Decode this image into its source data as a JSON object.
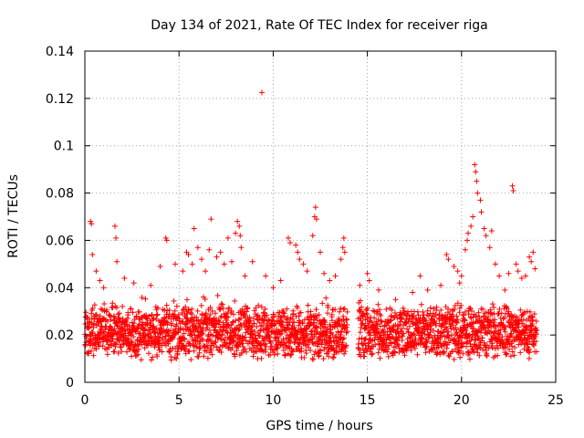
{
  "chart_data": {
    "type": "scatter",
    "title": "Day 134 of 2021, Rate Of TEC Index for receiver riga",
    "xlabel": "GPS time / hours",
    "ylabel": "ROTI / TECUs",
    "xlim": [
      0,
      25
    ],
    "ylim": [
      0,
      0.14
    ],
    "xticks": [
      0,
      5,
      10,
      15,
      20,
      25
    ],
    "xtick_labels": [
      "0",
      "5",
      "10",
      "15",
      "20",
      "25"
    ],
    "yticks": [
      0,
      0.02,
      0.04,
      0.06,
      0.08,
      0.1,
      0.12,
      0.14
    ],
    "ytick_labels": [
      "0",
      "0.02",
      "0.04",
      "0.06",
      "0.08",
      "0.1",
      "0.12",
      "0.14"
    ],
    "grid": true,
    "marker": "plus",
    "color": "#ff0000",
    "data_gap_hours": [
      13.95,
      14.5
    ],
    "data_range_hours": [
      0,
      24
    ],
    "series": [
      {
        "name": "ROTI",
        "points": [
          [
            0.3,
            0.068
          ],
          [
            0.35,
            0.067
          ],
          [
            0.4,
            0.054
          ],
          [
            0.6,
            0.047
          ],
          [
            0.8,
            0.043
          ],
          [
            1.0,
            0.04
          ],
          [
            1.6,
            0.066
          ],
          [
            1.65,
            0.061
          ],
          [
            1.7,
            0.051
          ],
          [
            2.1,
            0.044
          ],
          [
            2.6,
            0.042
          ],
          [
            3.5,
            0.041
          ],
          [
            4.0,
            0.049
          ],
          [
            4.3,
            0.061
          ],
          [
            4.35,
            0.06
          ],
          [
            4.8,
            0.05
          ],
          [
            5.2,
            0.047
          ],
          [
            5.4,
            0.055
          ],
          [
            5.5,
            0.054
          ],
          [
            5.7,
            0.05
          ],
          [
            5.8,
            0.065
          ],
          [
            6.0,
            0.057
          ],
          [
            6.2,
            0.052
          ],
          [
            6.4,
            0.047
          ],
          [
            6.6,
            0.056
          ],
          [
            6.7,
            0.069
          ],
          [
            7.0,
            0.053
          ],
          [
            7.2,
            0.055
          ],
          [
            7.4,
            0.05
          ],
          [
            7.6,
            0.061
          ],
          [
            7.8,
            0.051
          ],
          [
            8.0,
            0.063
          ],
          [
            8.1,
            0.068
          ],
          [
            8.2,
            0.066
          ],
          [
            8.25,
            0.062
          ],
          [
            8.3,
            0.057
          ],
          [
            8.5,
            0.045
          ],
          [
            8.9,
            0.051
          ],
          [
            9.4,
            0.1225
          ],
          [
            9.6,
            0.045
          ],
          [
            10.0,
            0.04
          ],
          [
            10.4,
            0.043
          ],
          [
            10.8,
            0.061
          ],
          [
            10.9,
            0.059
          ],
          [
            11.2,
            0.058
          ],
          [
            11.3,
            0.055
          ],
          [
            11.4,
            0.052
          ],
          [
            11.6,
            0.05
          ],
          [
            11.8,
            0.047
          ],
          [
            12.1,
            0.062
          ],
          [
            12.2,
            0.07
          ],
          [
            12.25,
            0.074
          ],
          [
            12.3,
            0.069
          ],
          [
            12.5,
            0.055
          ],
          [
            12.7,
            0.046
          ],
          [
            13.0,
            0.043
          ],
          [
            13.3,
            0.045
          ],
          [
            13.6,
            0.052
          ],
          [
            13.7,
            0.057
          ],
          [
            13.75,
            0.061
          ],
          [
            13.8,
            0.055
          ],
          [
            14.6,
            0.041
          ],
          [
            15.0,
            0.046
          ],
          [
            15.1,
            0.043
          ],
          [
            15.6,
            0.039
          ],
          [
            16.5,
            0.035
          ],
          [
            17.4,
            0.038
          ],
          [
            17.8,
            0.045
          ],
          [
            18.2,
            0.039
          ],
          [
            18.9,
            0.041
          ],
          [
            19.2,
            0.054
          ],
          [
            19.3,
            0.052
          ],
          [
            19.6,
            0.049
          ],
          [
            19.8,
            0.047
          ],
          [
            19.9,
            0.042
          ],
          [
            20.0,
            0.045
          ],
          [
            20.2,
            0.056
          ],
          [
            20.3,
            0.06
          ],
          [
            20.35,
            0.063
          ],
          [
            20.5,
            0.066
          ],
          [
            20.6,
            0.07
          ],
          [
            20.7,
            0.092
          ],
          [
            20.75,
            0.089
          ],
          [
            20.8,
            0.085
          ],
          [
            20.85,
            0.08
          ],
          [
            21.0,
            0.077
          ],
          [
            21.05,
            0.072
          ],
          [
            21.2,
            0.065
          ],
          [
            21.3,
            0.062
          ],
          [
            21.5,
            0.057
          ],
          [
            21.6,
            0.064
          ],
          [
            21.8,
            0.05
          ],
          [
            22.0,
            0.045
          ],
          [
            22.3,
            0.039
          ],
          [
            22.5,
            0.046
          ],
          [
            22.7,
            0.083
          ],
          [
            22.75,
            0.081
          ],
          [
            22.9,
            0.05
          ],
          [
            23.0,
            0.047
          ],
          [
            23.2,
            0.044
          ],
          [
            23.4,
            0.045
          ],
          [
            23.6,
            0.053
          ],
          [
            23.7,
            0.051
          ],
          [
            23.8,
            0.055
          ],
          [
            23.9,
            0.048
          ]
        ]
      }
    ]
  }
}
